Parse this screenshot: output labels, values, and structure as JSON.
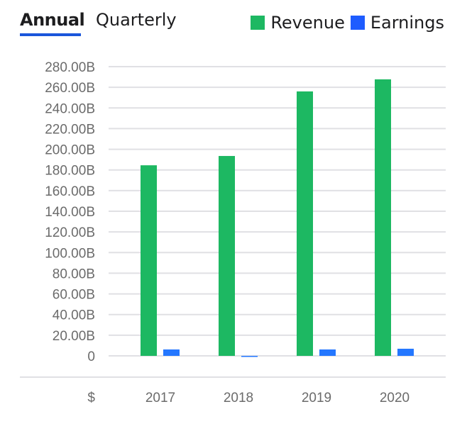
{
  "tabs": [
    {
      "label": "Annual",
      "active": true
    },
    {
      "label": "Quarterly",
      "active": false
    }
  ],
  "colors": {
    "revenue": "#1db862",
    "earnings": "#1e5cff",
    "earnings_bar": "#2477ff",
    "accent": "#1a56db",
    "grid": "#e0e0e4"
  },
  "chart_data": {
    "type": "bar",
    "title": "",
    "xlabel": "",
    "ylabel": "",
    "currency_label": "$",
    "categories": [
      "2017",
      "2018",
      "2019",
      "2020"
    ],
    "series": [
      {
        "name": "Revenue",
        "values": [
          184.5,
          193.5,
          256.0,
          267.7
        ]
      },
      {
        "name": "Earnings",
        "values": [
          6.2,
          -0.5,
          6.2,
          6.9
        ]
      }
    ],
    "ylim": [
      0,
      280
    ],
    "yticks": [
      {
        "value": 280,
        "label": "280.00B"
      },
      {
        "value": 260,
        "label": "260.00B"
      },
      {
        "value": 240,
        "label": "240.00B"
      },
      {
        "value": 220,
        "label": "220.00B"
      },
      {
        "value": 200,
        "label": "200.00B"
      },
      {
        "value": 180,
        "label": "180.00B"
      },
      {
        "value": 160,
        "label": "160.00B"
      },
      {
        "value": 140,
        "label": "140.00B"
      },
      {
        "value": 120,
        "label": "120.00B"
      },
      {
        "value": 100,
        "label": "100.00B"
      },
      {
        "value": 80,
        "label": "80.00B"
      },
      {
        "value": 60,
        "label": "60.00B"
      },
      {
        "value": 40,
        "label": "40.00B"
      },
      {
        "value": 20,
        "label": "20.00B"
      },
      {
        "value": 0,
        "label": "0"
      }
    ],
    "grid": true,
    "legend_position": "top-right"
  }
}
